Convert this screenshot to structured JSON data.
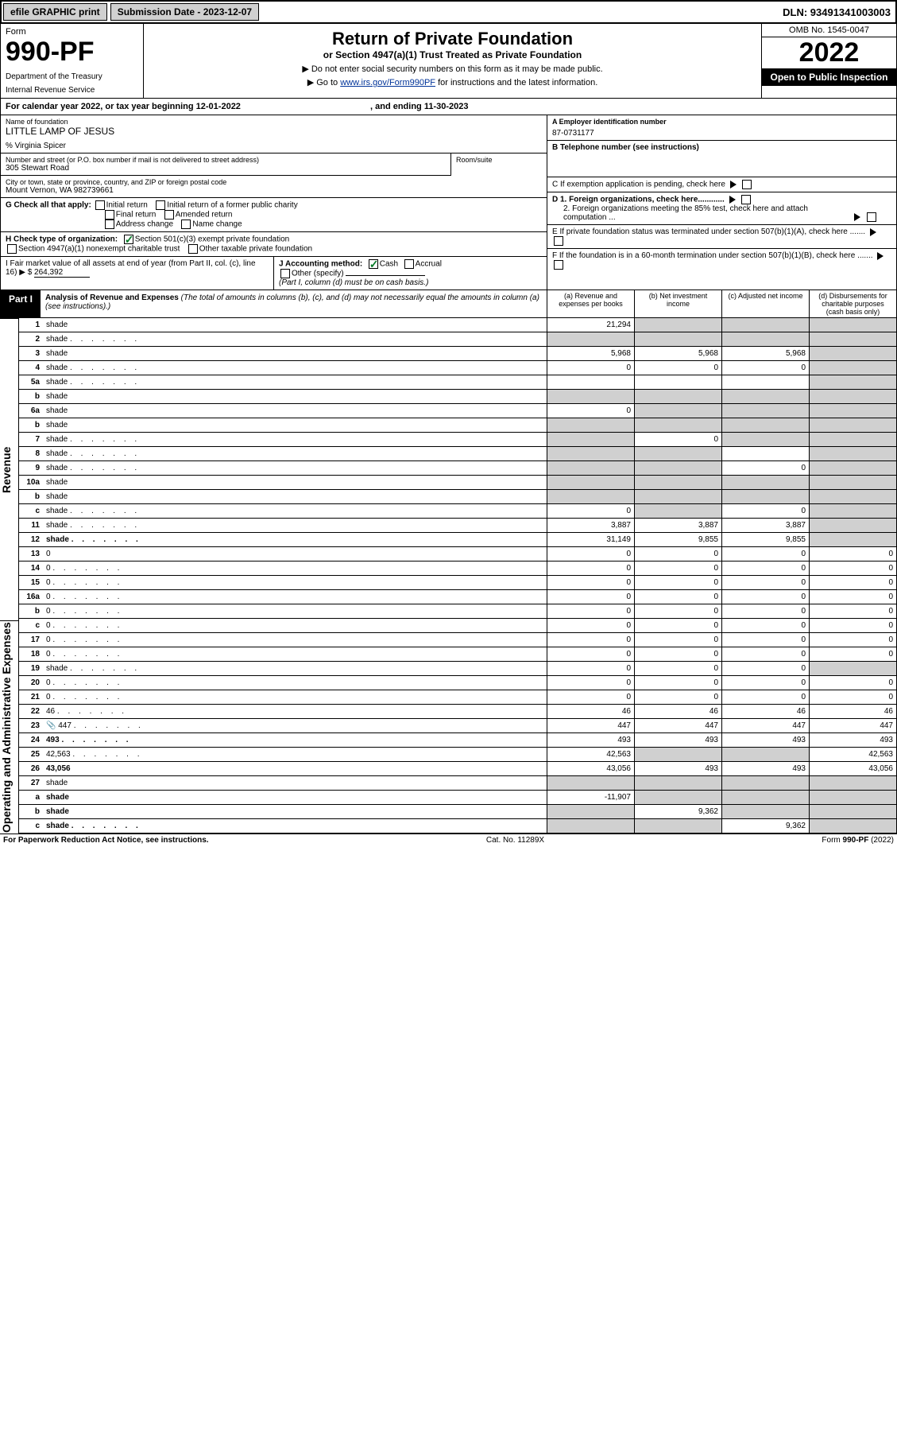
{
  "topbar": {
    "efile": "efile GRAPHIC print",
    "submission_label": "Submission Date - 2023-12-07",
    "dln": "DLN: 93491341003003"
  },
  "header": {
    "form_word": "Form",
    "form_number": "990-PF",
    "dept1": "Department of the Treasury",
    "dept2": "Internal Revenue Service",
    "title": "Return of Private Foundation",
    "subtitle": "or Section 4947(a)(1) Trust Treated as Private Foundation",
    "note1": "▶ Do not enter social security numbers on this form as it may be made public.",
    "note2_pre": "▶ Go to ",
    "note2_link": "www.irs.gov/Form990PF",
    "note2_post": " for instructions and the latest information.",
    "omb": "OMB No. 1545-0047",
    "year": "2022",
    "open": "Open to Public Inspection"
  },
  "calyear": {
    "text_pre": "For calendar year 2022, or tax year beginning ",
    "begin": "12-01-2022",
    "text_mid": " , and ending ",
    "end": "11-30-2023"
  },
  "info": {
    "name_lbl": "Name of foundation",
    "name_val": "LITTLE LAMP OF JESUS",
    "care_of": "% Virginia Spicer",
    "addr_lbl": "Number and street (or P.O. box number if mail is not delivered to street address)",
    "addr_val": "305 Stewart Road",
    "room_lbl": "Room/suite",
    "city_lbl": "City or town, state or province, country, and ZIP or foreign postal code",
    "city_val": "Mount Vernon, WA 982739661",
    "ein_lbl": "A Employer identification number",
    "ein_val": "87-0731177",
    "tel_lbl": "B Telephone number (see instructions)",
    "c_lbl": "C If exemption application is pending, check here",
    "d1_lbl": "D 1. Foreign organizations, check here............",
    "d2_lbl": "2. Foreign organizations meeting the 85% test, check here and attach computation ...",
    "e_lbl": "E If private foundation status was terminated under section 507(b)(1)(A), check here .......",
    "f_lbl": "F If the foundation is in a 60-month termination under section 507(b)(1)(B), check here .......",
    "g_lbl": "G Check all that apply:",
    "g_opts": [
      "Initial return",
      "Initial return of a former public charity",
      "Final return",
      "Amended return",
      "Address change",
      "Name change"
    ],
    "h_lbl": "H Check type of organization:",
    "h_opt1": "Section 501(c)(3) exempt private foundation",
    "h_opt2": "Section 4947(a)(1) nonexempt charitable trust",
    "h_opt3": "Other taxable private foundation",
    "i_lbl": "I Fair market value of all assets at end of year (from Part II, col. (c), line 16) ▶ $",
    "i_val": "264,392",
    "j_lbl": "J Accounting method:",
    "j_cash": "Cash",
    "j_accrual": "Accrual",
    "j_other": "Other (specify)",
    "j_note": "(Part I, column (d) must be on cash basis.)"
  },
  "part1": {
    "label": "Part I",
    "title": "Analysis of Revenue and Expenses",
    "title_note": " (The total of amounts in columns (b), (c), and (d) may not necessarily equal the amounts in column (a) (see instructions).)",
    "col_a": "(a) Revenue and expenses per books",
    "col_b": "(b) Net investment income",
    "col_c": "(c) Adjusted net income",
    "col_d": "(d) Disbursements for charitable purposes (cash basis only)"
  },
  "sidelabels": {
    "revenue": "Revenue",
    "expenses": "Operating and Administrative Expenses"
  },
  "rows": [
    {
      "n": "1",
      "d": "shade",
      "a": "21,294",
      "b": "shade",
      "c": "shade"
    },
    {
      "n": "2",
      "d": "shade",
      "a": "shade",
      "b": "shade",
      "c": "shade",
      "dots": true
    },
    {
      "n": "3",
      "d": "shade",
      "a": "5,968",
      "b": "5,968",
      "c": "5,968"
    },
    {
      "n": "4",
      "d": "shade",
      "a": "0",
      "b": "0",
      "c": "0",
      "dots": true
    },
    {
      "n": "5a",
      "d": "shade",
      "a": "",
      "b": "",
      "c": "",
      "dots": true
    },
    {
      "n": "b",
      "d": "shade",
      "a": "shade",
      "b": "shade",
      "c": "shade"
    },
    {
      "n": "6a",
      "d": "shade",
      "a": "0",
      "b": "shade",
      "c": "shade"
    },
    {
      "n": "b",
      "d": "shade",
      "a": "shade",
      "b": "shade",
      "c": "shade"
    },
    {
      "n": "7",
      "d": "shade",
      "a": "shade",
      "b": "0",
      "c": "shade",
      "dots": true
    },
    {
      "n": "8",
      "d": "shade",
      "a": "shade",
      "b": "shade",
      "c": "",
      "dots": true
    },
    {
      "n": "9",
      "d": "shade",
      "a": "shade",
      "b": "shade",
      "c": "0",
      "dots": true
    },
    {
      "n": "10a",
      "d": "shade",
      "a": "shade",
      "b": "shade",
      "c": "shade"
    },
    {
      "n": "b",
      "d": "shade",
      "a": "shade",
      "b": "shade",
      "c": "shade"
    },
    {
      "n": "c",
      "d": "shade",
      "a": "0",
      "b": "shade",
      "c": "0",
      "dots": true
    },
    {
      "n": "11",
      "d": "shade",
      "a": "3,887",
      "b": "3,887",
      "c": "3,887",
      "dots": true
    },
    {
      "n": "12",
      "d": "shade",
      "a": "31,149",
      "b": "9,855",
      "c": "9,855",
      "bold": true,
      "dots": true
    },
    {
      "n": "13",
      "d": "0",
      "a": "0",
      "b": "0",
      "c": "0"
    },
    {
      "n": "14",
      "d": "0",
      "a": "0",
      "b": "0",
      "c": "0",
      "dots": true
    },
    {
      "n": "15",
      "d": "0",
      "a": "0",
      "b": "0",
      "c": "0",
      "dots": true
    },
    {
      "n": "16a",
      "d": "0",
      "a": "0",
      "b": "0",
      "c": "0",
      "dots": true
    },
    {
      "n": "b",
      "d": "0",
      "a": "0",
      "b": "0",
      "c": "0",
      "dots": true
    },
    {
      "n": "c",
      "d": "0",
      "a": "0",
      "b": "0",
      "c": "0",
      "dots": true
    },
    {
      "n": "17",
      "d": "0",
      "a": "0",
      "b": "0",
      "c": "0",
      "dots": true
    },
    {
      "n": "18",
      "d": "0",
      "a": "0",
      "b": "0",
      "c": "0",
      "dots": true
    },
    {
      "n": "19",
      "d": "shade",
      "a": "0",
      "b": "0",
      "c": "0",
      "dots": true
    },
    {
      "n": "20",
      "d": "0",
      "a": "0",
      "b": "0",
      "c": "0",
      "dots": true
    },
    {
      "n": "21",
      "d": "0",
      "a": "0",
      "b": "0",
      "c": "0",
      "dots": true
    },
    {
      "n": "22",
      "d": "46",
      "a": "46",
      "b": "46",
      "c": "46",
      "dots": true
    },
    {
      "n": "23",
      "d": "447",
      "a": "447",
      "b": "447",
      "c": "447",
      "icon": true,
      "dots": true
    },
    {
      "n": "24",
      "d": "493",
      "a": "493",
      "b": "493",
      "c": "493",
      "bold": true,
      "dots": true
    },
    {
      "n": "25",
      "d": "42,563",
      "a": "42,563",
      "b": "shade",
      "c": "shade",
      "dots": true
    },
    {
      "n": "26",
      "d": "43,056",
      "a": "43,056",
      "b": "493",
      "c": "493",
      "bold": true
    },
    {
      "n": "27",
      "d": "shade",
      "a": "shade",
      "b": "shade",
      "c": "shade"
    },
    {
      "n": "a",
      "d": "shade",
      "a": "-11,907",
      "b": "shade",
      "c": "shade",
      "bold": true
    },
    {
      "n": "b",
      "d": "shade",
      "a": "shade",
      "b": "9,362",
      "c": "shade",
      "bold": true
    },
    {
      "n": "c",
      "d": "shade",
      "a": "shade",
      "b": "shade",
      "c": "9,362",
      "bold": true,
      "dots": true
    }
  ],
  "footer": {
    "left": "For Paperwork Reduction Act Notice, see instructions.",
    "mid": "Cat. No. 11289X",
    "right": "Form 990-PF (2022)"
  },
  "colors": {
    "shade": "#d0d0d0",
    "link": "#003399",
    "check": "#0a7d2b"
  }
}
